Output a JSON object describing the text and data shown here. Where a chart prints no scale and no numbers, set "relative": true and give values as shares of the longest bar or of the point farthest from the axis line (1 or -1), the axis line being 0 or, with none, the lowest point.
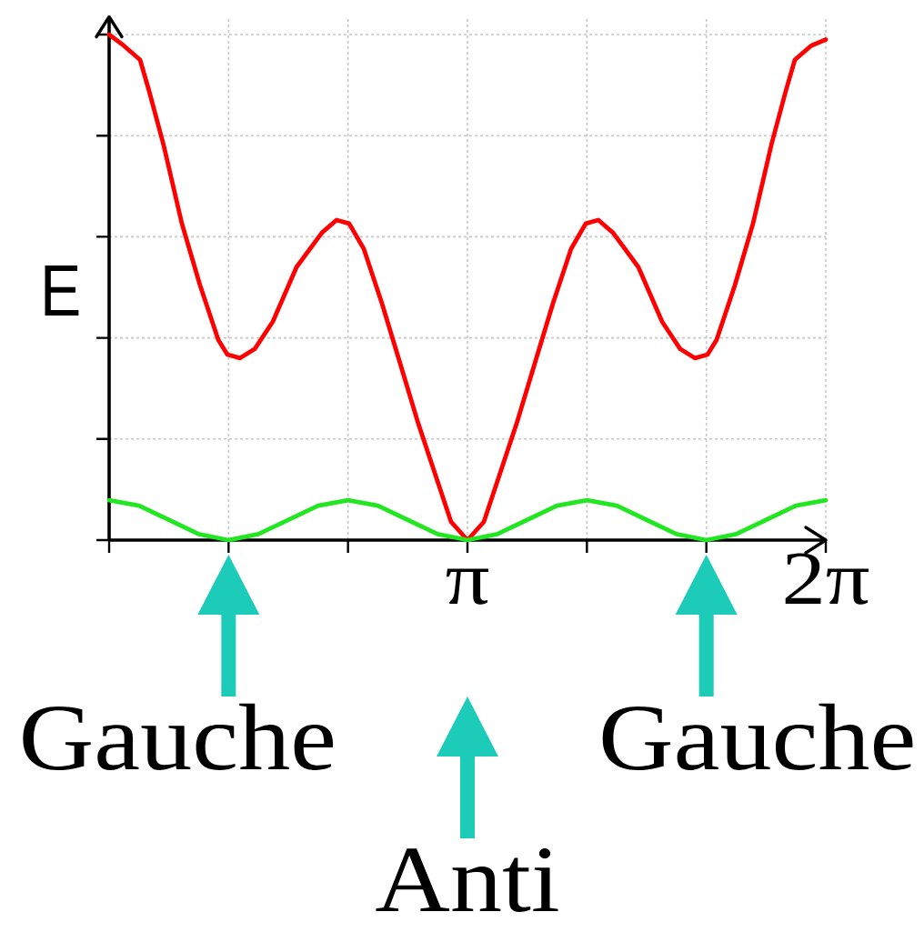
{
  "chart_data": {
    "type": "line",
    "ylabel": "E",
    "relative": true,
    "grid": true,
    "xlim": [
      0,
      6.2832
    ],
    "xticks": [
      {
        "value": 0,
        "label": null
      },
      {
        "value": 1.0472,
        "label": null
      },
      {
        "value": 2.0944,
        "label": null
      },
      {
        "value": 3.1416,
        "label": "π"
      },
      {
        "value": 4.1888,
        "label": null
      },
      {
        "value": 5.236,
        "label": null
      },
      {
        "value": 6.2832,
        "label": "2π"
      }
    ],
    "series": [
      {
        "color": "#ff0000",
        "x": [
          0,
          0.128,
          0.271,
          0.351,
          0.478,
          0.638,
          0.797,
          0.957,
          1.037,
          1.148,
          1.276,
          1.435,
          1.643,
          1.866,
          1.994,
          2.105,
          2.233,
          2.392,
          2.552,
          2.711,
          2.871,
          2.998,
          3.142,
          3.285,
          3.412,
          3.572,
          3.731,
          3.891,
          4.05,
          4.178,
          4.289,
          4.417,
          4.64,
          4.848,
          5.007,
          5.135,
          5.246,
          5.326,
          5.486,
          5.645,
          5.805,
          5.932,
          6.012,
          6.155,
          6.283
        ],
        "values": [
          1.0,
          0.978,
          0.95,
          0.888,
          0.781,
          0.626,
          0.504,
          0.396,
          0.367,
          0.36,
          0.378,
          0.432,
          0.54,
          0.608,
          0.633,
          0.626,
          0.576,
          0.468,
          0.349,
          0.23,
          0.122,
          0.036,
          0,
          0.036,
          0.122,
          0.23,
          0.349,
          0.468,
          0.576,
          0.626,
          0.633,
          0.608,
          0.54,
          0.432,
          0.378,
          0.36,
          0.367,
          0.396,
          0.504,
          0.626,
          0.781,
          0.888,
          0.95,
          0.978,
          0.99
        ]
      },
      {
        "color": "#22e622",
        "x": [
          0,
          0.262,
          0.524,
          0.785,
          1.047,
          1.309,
          1.571,
          1.833,
          2.094,
          2.356,
          2.618,
          2.88,
          3.142,
          3.403,
          3.665,
          3.927,
          4.189,
          4.451,
          4.712,
          4.974,
          5.236,
          5.498,
          5.76,
          6.021,
          6.283
        ],
        "values": [
          0.079,
          0.068,
          0.04,
          0.012,
          0,
          0.012,
          0.04,
          0.068,
          0.079,
          0.068,
          0.04,
          0.012,
          0,
          0.012,
          0.04,
          0.068,
          0.079,
          0.068,
          0.04,
          0.012,
          0,
          0.012,
          0.04,
          0.068,
          0.079
        ]
      }
    ],
    "annotations": [
      {
        "text": "Gauche",
        "x": 1.0472,
        "y": 0
      },
      "Anti",
      {
        "text": "Gauche",
        "x": 5.236,
        "y": 0
      }
    ]
  }
}
